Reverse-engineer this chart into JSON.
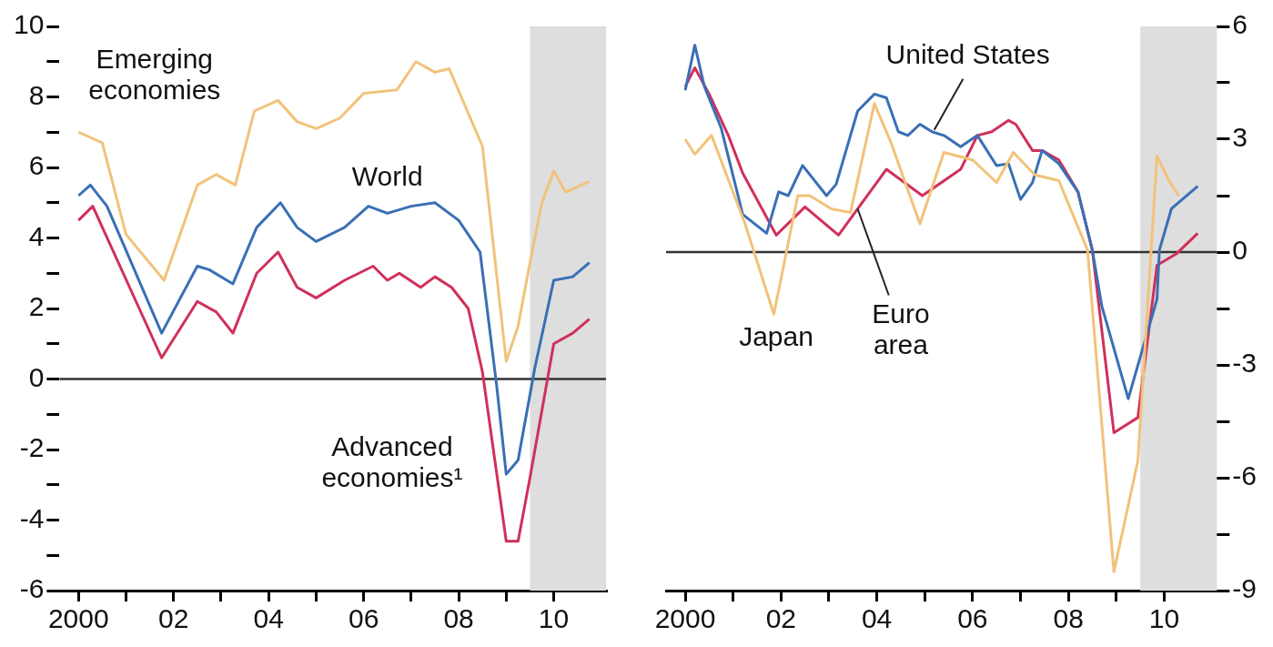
{
  "chart_data": [
    {
      "type": "line",
      "xlim": [
        1999.6,
        2011.1
      ],
      "ylim": [
        -6,
        10
      ],
      "xticks": [
        2000,
        {
          "value": 2001,
          "label": null
        },
        {
          "value": 2002,
          "label": "02"
        },
        {
          "value": 2003,
          "label": null
        },
        {
          "value": 2004,
          "label": "04"
        },
        {
          "value": 2005,
          "label": null
        },
        {
          "value": 2006,
          "label": "06"
        },
        {
          "value": 2007,
          "label": null
        },
        {
          "value": 2008,
          "label": "08"
        },
        {
          "value": 2009,
          "label": null
        },
        {
          "value": 2010,
          "label": "10"
        }
      ],
      "yticks": [
        -6,
        {
          "value": -5,
          "label": null
        },
        -4,
        {
          "value": -3,
          "label": null
        },
        -2,
        {
          "value": -1,
          "label": null
        },
        0,
        {
          "value": 1,
          "label": null
        },
        2,
        {
          "value": 3,
          "label": null
        },
        4,
        {
          "value": 5,
          "label": null
        },
        6,
        {
          "value": 7,
          "label": null
        },
        8,
        {
          "value": 9,
          "label": null
        },
        10
      ],
      "grid": false,
      "legend": false,
      "marker": "none",
      "line_style": "solid",
      "ref_lines": [
        {
          "axis": "y",
          "value": 0,
          "color": "#333333"
        }
      ],
      "bands": [
        {
          "axis": "x",
          "from": 2009.5,
          "to": 2011.1,
          "color": "#dedede"
        }
      ],
      "series": [
        {
          "name": "Emerging economies",
          "color": "#f2c27a",
          "x": [
            2000.0,
            2000.5,
            2001.0,
            2001.8,
            2002.5,
            2002.9,
            2003.3,
            2003.7,
            2004.2,
            2004.6,
            2005.0,
            2005.5,
            2006.0,
            2006.7,
            2007.1,
            2007.5,
            2007.8,
            2008.5,
            2009.0,
            2009.25,
            2009.5,
            2009.75,
            2010.0,
            2010.25,
            2010.75
          ],
          "values": [
            7.0,
            6.7,
            4.1,
            2.8,
            5.5,
            5.8,
            5.5,
            7.6,
            7.9,
            7.3,
            7.1,
            7.4,
            8.1,
            8.2,
            9.0,
            8.7,
            8.8,
            6.6,
            0.5,
            1.5,
            3.3,
            5.0,
            5.9,
            5.3,
            5.6
          ]
        },
        {
          "name": "World",
          "color": "#3a6fb5",
          "x": [
            2000.0,
            2000.25,
            2000.6,
            2001.75,
            2002.5,
            2002.75,
            2003.25,
            2003.75,
            2004.25,
            2004.6,
            2005.0,
            2005.6,
            2006.1,
            2006.5,
            2007.0,
            2007.5,
            2008.0,
            2008.45,
            2008.8,
            2009.0,
            2009.25,
            2009.6,
            2010.0,
            2010.4,
            2010.75
          ],
          "values": [
            5.2,
            5.5,
            4.9,
            1.3,
            3.2,
            3.1,
            2.7,
            4.3,
            5.0,
            4.3,
            3.9,
            4.3,
            4.9,
            4.7,
            4.9,
            5.0,
            4.5,
            3.6,
            -0.2,
            -2.7,
            -2.3,
            0.3,
            2.8,
            2.9,
            3.3
          ]
        },
        {
          "name": "Advanced economies¹",
          "color": "#d0305a",
          "x": [
            2000.0,
            2000.3,
            2001.75,
            2002.5,
            2002.9,
            2003.25,
            2003.75,
            2004.2,
            2004.6,
            2005.0,
            2005.6,
            2006.2,
            2006.5,
            2006.75,
            2007.2,
            2007.5,
            2007.85,
            2008.2,
            2008.5,
            2009.0,
            2009.25,
            2009.5,
            2010.0,
            2010.4,
            2010.75
          ],
          "values": [
            4.5,
            4.9,
            0.6,
            2.2,
            1.9,
            1.3,
            3.0,
            3.6,
            2.6,
            2.3,
            2.8,
            3.2,
            2.8,
            3.0,
            2.6,
            2.9,
            2.6,
            2.0,
            0.2,
            -4.6,
            -4.6,
            -2.8,
            1.0,
            1.3,
            1.7
          ]
        }
      ]
    },
    {
      "type": "line",
      "xlim": [
        1999.6,
        2011.1
      ],
      "ylim": [
        -9,
        6
      ],
      "xticks": [
        2000,
        {
          "value": 2001,
          "label": null
        },
        {
          "value": 2002,
          "label": "02"
        },
        {
          "value": 2003,
          "label": null
        },
        {
          "value": 2004,
          "label": "04"
        },
        {
          "value": 2005,
          "label": null
        },
        {
          "value": 2006,
          "label": "06"
        },
        {
          "value": 2007,
          "label": null
        },
        {
          "value": 2008,
          "label": "08"
        },
        {
          "value": 2009,
          "label": null
        },
        {
          "value": 2010,
          "label": "10"
        }
      ],
      "yticks": [
        -9,
        {
          "value": -7.5,
          "label": null
        },
        -6,
        {
          "value": -4.5,
          "label": null
        },
        -3,
        {
          "value": -1.5,
          "label": null
        },
        0,
        {
          "value": 1.5,
          "label": null
        },
        3,
        {
          "value": 4.5,
          "label": null
        },
        6
      ],
      "grid": false,
      "legend": false,
      "marker": "none",
      "line_style": "solid",
      "ref_lines": [
        {
          "axis": "y",
          "value": 0,
          "color": "#333333"
        }
      ],
      "bands": [
        {
          "axis": "x",
          "from": 2009.5,
          "to": 2011.1,
          "color": "#dedede"
        }
      ],
      "series": [
        {
          "name": "Japan",
          "color": "#f2c27a",
          "x": [
            2000.0,
            2000.2,
            2000.55,
            2001.25,
            2001.85,
            2002.35,
            2002.6,
            2003.05,
            2003.45,
            2003.95,
            2004.3,
            2004.9,
            2005.4,
            2006.0,
            2006.5,
            2006.85,
            2007.3,
            2007.8,
            2008.4,
            2008.95,
            2009.45,
            2009.85,
            2010.1,
            2010.3
          ],
          "values": [
            3.0,
            2.6,
            3.1,
            0.75,
            -1.65,
            1.5,
            1.5,
            1.15,
            1.05,
            3.95,
            2.9,
            0.75,
            2.65,
            2.45,
            1.85,
            2.65,
            2.05,
            1.9,
            0.05,
            -8.5,
            -5.55,
            2.55,
            1.9,
            1.5
          ]
        },
        {
          "name": "United States",
          "color": "#3a6fb5",
          "x": [
            2000.0,
            2000.2,
            2000.4,
            2000.75,
            2001.2,
            2001.7,
            2001.95,
            2002.15,
            2002.45,
            2002.95,
            2003.15,
            2003.6,
            2003.95,
            2004.2,
            2004.45,
            2004.65,
            2004.9,
            2005.15,
            2005.4,
            2005.75,
            2006.1,
            2006.5,
            2006.75,
            2007.0,
            2007.25,
            2007.45,
            2007.8,
            2008.2,
            2008.5,
            2008.7,
            2009.25,
            2009.85,
            2009.9,
            2010.15,
            2010.7
          ],
          "values": [
            4.3,
            5.5,
            4.4,
            3.3,
            1.0,
            0.5,
            1.6,
            1.5,
            2.3,
            1.5,
            1.8,
            3.75,
            4.2,
            4.1,
            3.2,
            3.1,
            3.4,
            3.2,
            3.1,
            2.8,
            3.1,
            2.3,
            2.35,
            1.4,
            1.85,
            2.7,
            2.35,
            1.6,
            0.05,
            -1.45,
            -3.9,
            -1.25,
            0.05,
            1.15,
            1.75
          ]
        },
        {
          "name": "Euro area",
          "color": "#d0305a",
          "x": [
            2000.0,
            2000.2,
            2000.5,
            2000.9,
            2001.2,
            2001.9,
            2002.5,
            2003.2,
            2004.2,
            2004.95,
            2005.75,
            2006.1,
            2006.4,
            2006.75,
            2006.9,
            2007.25,
            2007.45,
            2007.8,
            2008.2,
            2008.5,
            2008.95,
            2009.45,
            2009.85,
            2010.25,
            2010.7
          ],
          "values": [
            4.4,
            4.9,
            4.2,
            3.1,
            2.1,
            0.45,
            1.2,
            0.45,
            2.2,
            1.5,
            2.2,
            3.1,
            3.2,
            3.5,
            3.4,
            2.7,
            2.7,
            2.45,
            1.6,
            0.05,
            -4.8,
            -4.4,
            -0.35,
            -0.05,
            0.5
          ]
        }
      ]
    }
  ]
}
